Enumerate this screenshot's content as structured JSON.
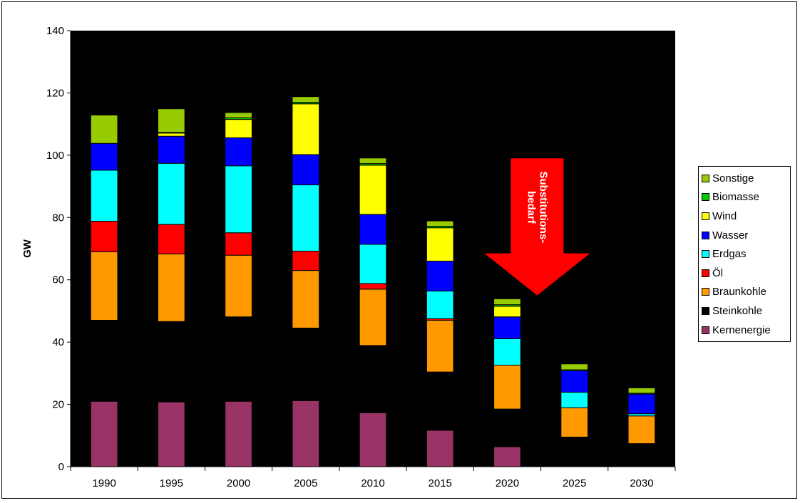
{
  "chart_data": {
    "type": "bar",
    "stacked": true,
    "categories": [
      "1990",
      "1995",
      "2000",
      "2005",
      "2010",
      "2015",
      "2020",
      "2025",
      "2030"
    ],
    "ylabel": "GW",
    "ylim": [
      0,
      140
    ],
    "yticks": [
      0,
      20,
      40,
      60,
      80,
      100,
      120,
      140
    ],
    "plot_background": "#000000",
    "grid": false,
    "legend_position": "right",
    "series": [
      {
        "name": "Kernenergie",
        "color": "#993366",
        "values": [
          21,
          20.8,
          21,
          21.2,
          17.3,
          11.7,
          6.4,
          0,
          0
        ]
      },
      {
        "name": "Steinkohle",
        "color": "#000000",
        "values": [
          26,
          25.8,
          27.1,
          23.3,
          21.6,
          18.7,
          12.1,
          9.5,
          7.4
        ]
      },
      {
        "name": "Braunkohle",
        "color": "#ff9900",
        "values": [
          22,
          21.7,
          19.8,
          18.5,
          18.1,
          16.6,
          14.1,
          9.4,
          8.9
        ]
      },
      {
        "name": "Öl",
        "color": "#ff0000",
        "values": [
          9.8,
          9.5,
          7.2,
          6.2,
          1.8,
          0.5,
          0,
          0,
          0
        ]
      },
      {
        "name": "Erdgas",
        "color": "#00ffff",
        "values": [
          16.4,
          19.6,
          21.5,
          21.3,
          12.6,
          8.9,
          8.5,
          5,
          0.7
        ]
      },
      {
        "name": "Wasser",
        "color": "#0000ff",
        "values": [
          8.6,
          8.7,
          9,
          9.7,
          9.6,
          9.6,
          7,
          6.9,
          6.3
        ]
      },
      {
        "name": "Wind",
        "color": "#ffff00",
        "values": [
          0,
          1,
          5.9,
          16.3,
          15.8,
          10.7,
          3.4,
          0,
          0
        ]
      },
      {
        "name": "Biomasse",
        "color": "#00cc00",
        "values": [
          0,
          0.2,
          0.5,
          0.5,
          0.5,
          0.5,
          0.5,
          0.3,
          0.3
        ]
      },
      {
        "name": "Sonstige",
        "color": "#99cc00",
        "values": [
          9.1,
          7.6,
          1.7,
          1.8,
          1.8,
          1.7,
          1.9,
          1.9,
          1.7
        ]
      }
    ],
    "annotation": {
      "text_lines": [
        "Substitutions-",
        "bedarf"
      ],
      "color": "#ff0000",
      "shape": "down-arrow",
      "over_category": "2020",
      "top_value": 99,
      "tip_value": 55
    }
  }
}
